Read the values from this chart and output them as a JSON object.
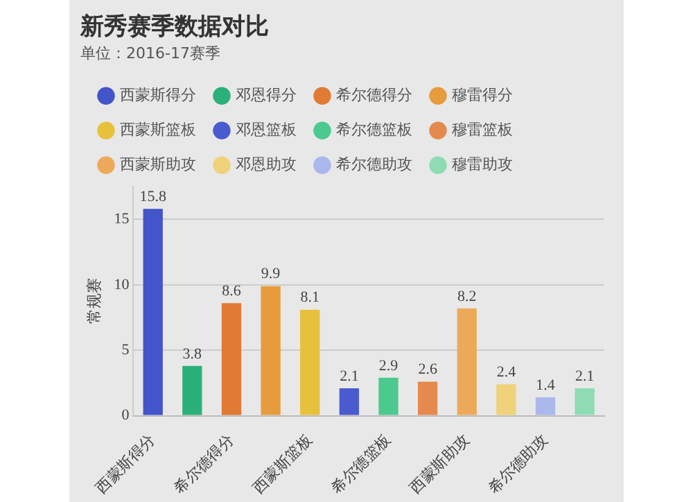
{
  "chart_data": {
    "type": "bar",
    "title": "新秀赛季数据对比",
    "subtitle": "单位：2016-17赛季",
    "ylabel": "常规赛",
    "categories": [
      "西蒙斯得分",
      null,
      "希尔德得分",
      null,
      "西蒙斯篮板",
      null,
      "希尔德篮板",
      null,
      "西蒙斯助攻",
      null,
      "希尔德助攻",
      null
    ],
    "series": [
      {
        "name": "西蒙斯得分",
        "color": "#4355c8",
        "values": [
          15.8,
          null,
          null,
          null,
          null,
          null,
          null,
          null,
          null,
          null,
          null,
          null
        ]
      },
      {
        "name": "邓恩得分",
        "color": "#2bb07a",
        "values": [
          null,
          3.8,
          null,
          null,
          null,
          null,
          null,
          null,
          null,
          null,
          null,
          null
        ]
      },
      {
        "name": "希尔德得分",
        "color": "#e07a35",
        "values": [
          null,
          null,
          8.6,
          null,
          null,
          null,
          null,
          null,
          null,
          null,
          null,
          null
        ]
      },
      {
        "name": "穆雷得分",
        "color": "#e69c3c",
        "values": [
          null,
          null,
          null,
          9.9,
          null,
          null,
          null,
          null,
          null,
          null,
          null,
          null
        ]
      },
      {
        "name": "西蒙斯篮板",
        "color": "#e8c13a",
        "values": [
          null,
          null,
          null,
          null,
          8.1,
          null,
          null,
          null,
          null,
          null,
          null,
          null
        ]
      },
      {
        "name": "邓恩篮板",
        "color": "#4a5bd0",
        "values": [
          null,
          null,
          null,
          null,
          null,
          2.1,
          null,
          null,
          null,
          null,
          null,
          null
        ]
      },
      {
        "name": "希尔德篮板",
        "color": "#4cc98e",
        "values": [
          null,
          null,
          null,
          null,
          null,
          null,
          2.9,
          null,
          null,
          null,
          null,
          null
        ]
      },
      {
        "name": "穆雷篮板",
        "color": "#e58a4e",
        "values": [
          null,
          null,
          null,
          null,
          null,
          null,
          null,
          2.6,
          null,
          null,
          null,
          null
        ]
      },
      {
        "name": "西蒙斯助攻",
        "color": "#eda95a",
        "values": [
          null,
          null,
          null,
          null,
          null,
          null,
          null,
          null,
          8.2,
          null,
          null,
          null
        ]
      },
      {
        "name": "邓恩助攻",
        "color": "#efd27a",
        "values": [
          null,
          null,
          null,
          null,
          null,
          null,
          null,
          null,
          null,
          2.4,
          null,
          null
        ]
      },
      {
        "name": "希尔德助攻",
        "color": "#aab8ec",
        "values": [
          null,
          null,
          null,
          null,
          null,
          null,
          null,
          null,
          null,
          null,
          1.4,
          null
        ]
      },
      {
        "name": "穆雷助攻",
        "color": "#8fdcb4",
        "values": [
          null,
          null,
          null,
          null,
          null,
          null,
          null,
          null,
          null,
          null,
          null,
          2.1
        ]
      }
    ],
    "ylim": [
      0,
      17.5
    ],
    "yticks": [
      0,
      5,
      10,
      15
    ],
    "grid": "y",
    "legend": "top left",
    "data_labels": true
  }
}
